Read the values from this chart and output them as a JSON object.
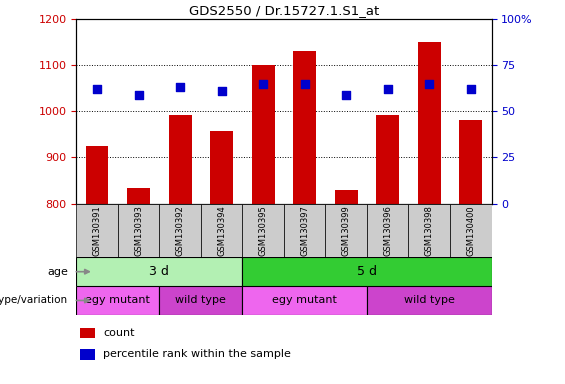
{
  "title": "GDS2550 / Dr.15727.1.S1_at",
  "samples": [
    "GSM130391",
    "GSM130393",
    "GSM130392",
    "GSM130394",
    "GSM130395",
    "GSM130397",
    "GSM130399",
    "GSM130396",
    "GSM130398",
    "GSM130400"
  ],
  "counts": [
    925,
    833,
    993,
    957,
    1101,
    1130,
    830,
    993,
    1151,
    981
  ],
  "percentile_ranks": [
    62,
    59,
    63,
    61,
    65,
    65,
    59,
    62,
    65,
    62
  ],
  "ylim_left": [
    800,
    1200
  ],
  "ylim_right": [
    0,
    100
  ],
  "yticks_left": [
    800,
    900,
    1000,
    1100,
    1200
  ],
  "yticks_right": [
    0,
    25,
    50,
    75,
    100
  ],
  "bar_color": "#cc0000",
  "dot_color": "#0000cc",
  "age_labels": [
    {
      "text": "3 d",
      "start": 0,
      "end": 4,
      "color": "#b3f0b3"
    },
    {
      "text": "5 d",
      "start": 4,
      "end": 10,
      "color": "#33cc33"
    }
  ],
  "genotype_labels": [
    {
      "text": "egy mutant",
      "start": 0,
      "end": 2,
      "color": "#ee66ee"
    },
    {
      "text": "wild type",
      "start": 2,
      "end": 4,
      "color": "#cc44cc"
    },
    {
      "text": "egy mutant",
      "start": 4,
      "end": 7,
      "color": "#ee66ee"
    },
    {
      "text": "wild type",
      "start": 7,
      "end": 10,
      "color": "#cc44cc"
    }
  ],
  "age_row_label": "age",
  "genotype_row_label": "genotype/variation",
  "legend_items": [
    {
      "color": "#cc0000",
      "label": "count"
    },
    {
      "color": "#0000cc",
      "label": "percentile rank within the sample"
    }
  ],
  "bar_width": 0.55,
  "dot_size": 30,
  "grid_linestyle": "dotted",
  "tick_color_left": "#cc0000",
  "tick_color_right": "#0000cc",
  "sample_box_color": "#cccccc",
  "bg_color": "#ffffff"
}
